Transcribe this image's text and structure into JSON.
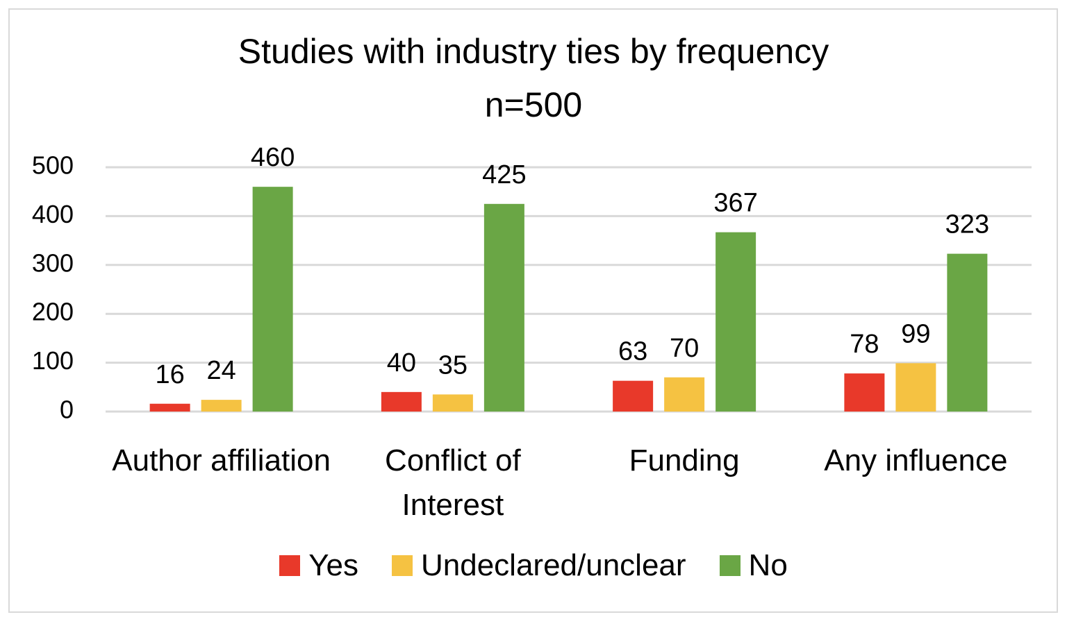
{
  "chart_data": {
    "type": "bar",
    "title": "Studies with industry ties by frequency",
    "subtitle": "n=500",
    "categories": [
      "Author affiliation",
      "Conflict of Interest",
      "Funding",
      "Any influence"
    ],
    "series": [
      {
        "name": "Yes",
        "color": "#e8392a",
        "values": [
          16,
          40,
          63,
          78
        ]
      },
      {
        "name": "Undeclared/unclear",
        "color": "#f5c242",
        "values": [
          24,
          35,
          70,
          99
        ]
      },
      {
        "name": "No",
        "color": "#6aa645",
        "values": [
          460,
          425,
          367,
          323
        ]
      }
    ],
    "ylim": [
      0,
      500
    ],
    "yticks": [
      0,
      100,
      200,
      300,
      400,
      500
    ],
    "grid": true,
    "legend": "bottom"
  }
}
